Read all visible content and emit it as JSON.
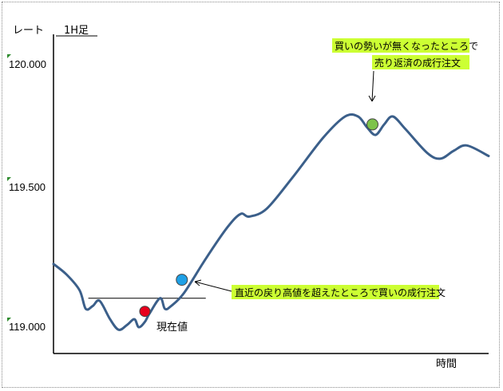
{
  "chart_data": {
    "type": "line",
    "ylabel": "レート",
    "timeframe": "1H足",
    "xlabel": "時間",
    "y_ticks": [
      "120.000",
      "119.500",
      "119.000"
    ],
    "y_tick_values": [
      120.0,
      119.5,
      119.0
    ],
    "ylim": [
      118.9,
      120.1
    ],
    "xlim": [
      0,
      100
    ],
    "grid": false,
    "series": [
      {
        "color": "#3b5f8a",
        "points": [
          [
            0,
            119.24
          ],
          [
            3,
            119.2
          ],
          [
            6,
            119.14
          ],
          [
            7.4,
            119.07
          ],
          [
            9,
            119.08
          ],
          [
            10.6,
            119.1
          ],
          [
            13,
            119.03
          ],
          [
            15,
            118.99
          ],
          [
            17,
            119.01
          ],
          [
            18.6,
            119.03
          ],
          [
            19.6,
            119.0
          ],
          [
            21,
            119.02
          ],
          [
            22,
            119.05
          ],
          [
            24.5,
            119.11
          ],
          [
            25.6,
            119.07
          ],
          [
            27,
            119.08
          ],
          [
            30,
            119.13
          ],
          [
            35,
            119.26
          ],
          [
            40,
            119.38
          ],
          [
            43,
            119.43
          ],
          [
            45,
            119.42
          ],
          [
            49,
            119.45
          ],
          [
            55,
            119.57
          ],
          [
            62,
            119.72
          ],
          [
            67,
            119.8
          ],
          [
            70,
            119.8
          ],
          [
            72,
            119.76
          ],
          [
            74,
            119.73
          ],
          [
            76,
            119.77
          ],
          [
            78,
            119.8
          ],
          [
            81,
            119.75
          ],
          [
            86,
            119.66
          ],
          [
            89,
            119.64
          ],
          [
            92,
            119.67
          ],
          [
            95,
            119.69
          ],
          [
            100,
            119.65
          ]
        ]
      }
    ],
    "reference_line": {
      "y": 119.11,
      "x_start": 8,
      "x_end": 35
    },
    "markers": [
      {
        "name": "current-price",
        "x": 21,
        "y": 119.06,
        "color": "#e8001c"
      },
      {
        "name": "buy-entry",
        "x": 29.5,
        "y": 119.18,
        "color": "#1ea0e6"
      },
      {
        "name": "sell-exit",
        "x": 73.3,
        "y": 119.77,
        "color": "#7dc34a"
      }
    ],
    "annotations": {
      "current_price": "現在値",
      "buy_entry": "直近の戻り高値を超えたところで買いの成行注文",
      "sell_exit_line1": "買いの勢いが無くなったところで",
      "sell_exit_line2": "売り返済の成行注文"
    },
    "colors": {
      "callout_bg": "#ccff33",
      "tick_mark": "#2e8b2e"
    }
  }
}
